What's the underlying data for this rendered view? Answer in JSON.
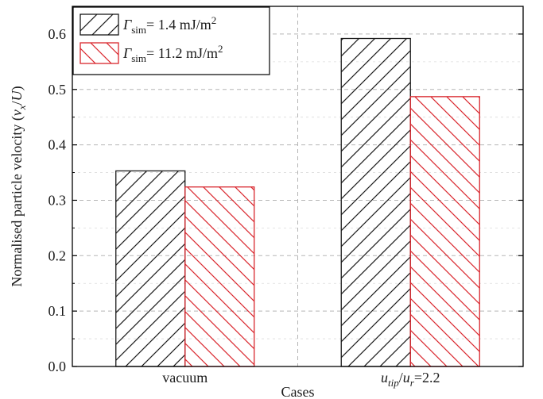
{
  "chart_data": {
    "type": "bar",
    "categories": [
      "vacuum",
      "u_tip/u_r=2.2"
    ],
    "category_labels": [
      {
        "parts": [
          {
            "t": "vacuum",
            "s": "normal"
          }
        ]
      },
      {
        "parts": [
          {
            "t": "u",
            "s": "italic"
          },
          {
            "t": "tip",
            "s": "italic-sub"
          },
          {
            "t": "/",
            "s": "normal"
          },
          {
            "t": "u",
            "s": "italic"
          },
          {
            "t": "r",
            "s": "italic-sub"
          },
          {
            "t": "=2.2",
            "s": "normal"
          }
        ]
      }
    ],
    "series": [
      {
        "name": "Γsim= 1.4 mJ/m2",
        "color": "#1a1a1a",
        "hatch": "forward",
        "values": [
          0.353,
          0.592
        ]
      },
      {
        "name": "Γsim= 11.2 mJ/m2",
        "color": "#d9262d",
        "hatch": "backward",
        "values": [
          0.324,
          0.487
        ]
      }
    ],
    "legend": [
      {
        "parts": [
          {
            "t": "Γ",
            "s": "italic"
          },
          {
            "t": "sim",
            "s": "sub"
          },
          {
            "t": "= 1.4 mJ/m",
            "s": "normal"
          },
          {
            "t": "2",
            "s": "sup"
          }
        ]
      },
      {
        "parts": [
          {
            "t": "Γ",
            "s": "italic"
          },
          {
            "t": "sim",
            "s": "sub"
          },
          {
            "t": "= 11.2 mJ/m",
            "s": "normal"
          },
          {
            "t": "2",
            "s": "sup"
          }
        ]
      }
    ],
    "legend_position": "top-left",
    "xlabel": "Cases",
    "ylabel_parts": [
      {
        "t": "Normalised particle velocity (",
        "s": "normal"
      },
      {
        "t": "v",
        "s": "italic"
      },
      {
        "t": "x",
        "s": "italic-sub"
      },
      {
        "t": "/",
        "s": "normal"
      },
      {
        "t": "U",
        "s": "italic"
      },
      {
        "t": ")",
        "s": "normal"
      }
    ],
    "ylim": [
      0.0,
      0.65
    ],
    "yticks": [
      "0.0",
      "0.1",
      "0.2",
      "0.3",
      "0.4",
      "0.5",
      "0.6"
    ],
    "grid": true
  }
}
